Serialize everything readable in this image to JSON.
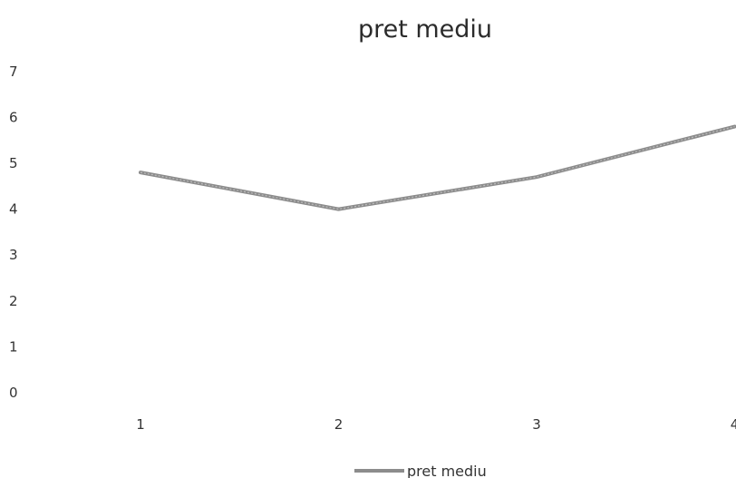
{
  "chart_data": {
    "type": "line",
    "title": "pret mediu",
    "xlabel": "",
    "ylabel": "",
    "categories": [
      "1",
      "2",
      "3",
      "4"
    ],
    "series": [
      {
        "name": "pret mediu",
        "values": [
          4.8,
          4.0,
          4.7,
          5.8
        ],
        "color": "#8c8c8c"
      }
    ],
    "yticks": [
      0,
      1,
      2,
      3,
      4,
      5,
      6,
      7
    ],
    "ylim": [
      0,
      7
    ],
    "grid": false,
    "legend_position": "bottom"
  }
}
